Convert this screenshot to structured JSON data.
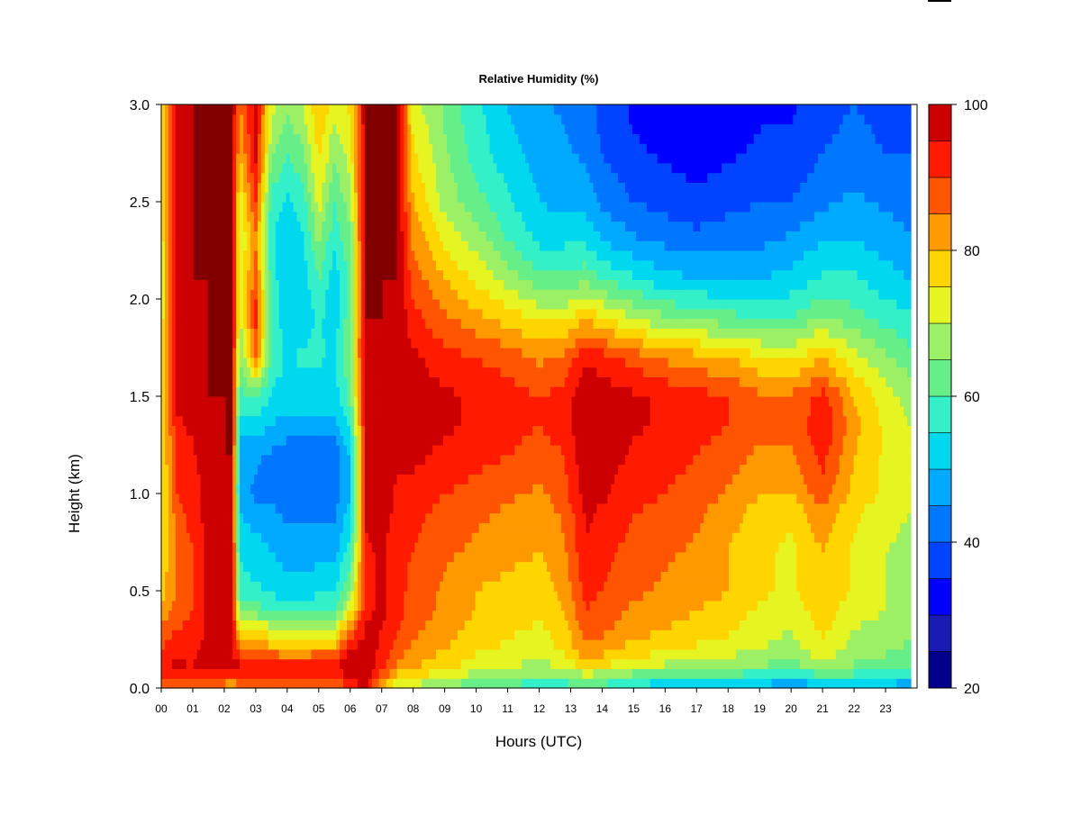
{
  "chart_data": {
    "type": "heatmap",
    "title": "Relative Humidity (%)",
    "xlabel": "Hours (UTC)",
    "ylabel": "Height (km)",
    "xlim": [
      0,
      24
    ],
    "ylim": [
      0.0,
      3.0
    ],
    "x_tick_labels": [
      "00",
      "01",
      "02",
      "03",
      "04",
      "05",
      "06",
      "07",
      "08",
      "09",
      "10",
      "11",
      "12",
      "13",
      "14",
      "15",
      "16",
      "17",
      "18",
      "19",
      "20",
      "21",
      "22",
      "23"
    ],
    "y_tick_labels": [
      "0.0",
      "0.5",
      "1.0",
      "1.5",
      "2.0",
      "2.5",
      "3.0"
    ],
    "colorbar": {
      "min": 20,
      "max": 100,
      "step": 5,
      "tick_labels": [
        "20",
        "40",
        "60",
        "80",
        "100"
      ],
      "colors": [
        "#00008b",
        "#1a1ab4",
        "#0000ff",
        "#0044ff",
        "#0077ff",
        "#00aaff",
        "#00d8f0",
        "#33f0c8",
        "#66ee88",
        "#9cf066",
        "#e6f522",
        "#ffd500",
        "#ff9900",
        "#ff5500",
        "#ff1a00",
        "#cc0000",
        "#800000"
      ]
    },
    "grid": false,
    "legend": "colorbar-right",
    "data": {
      "heights_km": [
        0.0,
        0.05,
        0.1,
        0.2,
        0.3,
        0.4,
        0.5,
        0.7,
        0.9,
        1.0,
        1.2,
        1.35,
        1.5,
        1.7,
        1.9,
        2.1,
        2.3,
        2.5,
        2.75,
        3.0
      ],
      "hours": [
        0.0,
        0.5,
        1.0,
        1.5,
        2.0,
        2.25,
        2.5,
        3.0,
        3.5,
        4.0,
        4.5,
        5.0,
        5.5,
        6.0,
        6.5,
        7.0,
        7.5,
        8.0,
        9.0,
        10.0,
        11.0,
        12.0,
        12.8,
        13.5,
        14.0,
        15.0,
        16.0,
        17.0,
        18.0,
        19.0,
        20.0,
        21.0,
        22.0,
        23.0,
        23.8
      ],
      "rh_percent": [
        [
          85,
          90,
          95,
          90,
          86,
          82,
          78,
          76,
          74,
          74,
          74,
          74,
          74,
          74,
          72,
          72,
          72,
          74,
          74,
          74
        ],
        [
          85,
          92,
          96,
          94,
          90,
          88,
          86,
          86,
          88,
          90,
          92,
          94,
          96,
          97,
          98,
          98,
          98,
          98,
          98,
          98
        ],
        [
          82,
          90,
          95,
          94,
          92,
          90,
          90,
          90,
          92,
          92,
          94,
          96,
          98,
          99,
          99,
          100,
          100,
          100,
          100,
          100
        ],
        [
          84,
          92,
          97,
          96,
          96,
          96,
          96,
          96,
          98,
          98,
          99,
          99,
          100,
          100,
          100,
          100,
          100,
          100,
          100,
          100
        ],
        [
          80,
          90,
          96,
          96,
          97,
          98,
          98,
          98,
          99,
          99,
          100,
          100,
          100,
          100,
          100,
          100,
          100,
          100,
          100,
          100
        ],
        [
          78,
          88,
          96,
          96,
          97,
          98,
          98,
          98,
          99,
          99,
          100,
          100,
          100,
          100,
          100,
          100,
          100,
          100,
          100,
          100
        ],
        [
          88,
          90,
          98,
          86,
          76,
          64,
          58,
          54,
          50,
          46,
          48,
          52,
          58,
          64,
          70,
          72,
          70,
          72,
          80,
          84
        ],
        [
          88,
          90,
          98,
          84,
          76,
          62,
          56,
          52,
          48,
          44,
          46,
          52,
          60,
          86,
          92,
          88,
          84,
          90,
          96,
          98
        ],
        [
          88,
          90,
          97,
          82,
          72,
          60,
          54,
          50,
          46,
          44,
          44,
          50,
          54,
          60,
          58,
          58,
          56,
          58,
          66,
          72
        ],
        [
          86,
          90,
          96,
          80,
          70,
          58,
          52,
          48,
          44,
          40,
          42,
          48,
          52,
          54,
          52,
          50,
          50,
          54,
          60,
          66
        ],
        [
          84,
          88,
          96,
          80,
          68,
          58,
          52,
          48,
          44,
          42,
          42,
          48,
          52,
          56,
          52,
          52,
          54,
          58,
          64,
          70
        ],
        [
          88,
          90,
          98,
          82,
          72,
          60,
          54,
          48,
          44,
          40,
          42,
          48,
          52,
          56,
          56,
          60,
          66,
          72,
          76,
          80
        ],
        [
          86,
          88,
          97,
          82,
          72,
          60,
          54,
          48,
          44,
          42,
          42,
          48,
          52,
          54,
          52,
          52,
          56,
          60,
          66,
          72
        ],
        [
          92,
          95,
          100,
          96,
          86,
          74,
          66,
          58,
          52,
          50,
          50,
          56,
          62,
          66,
          64,
          62,
          64,
          68,
          72,
          76
        ],
        [
          95,
          98,
          100,
          98,
          96,
          94,
          94,
          94,
          96,
          96,
          98,
          98,
          99,
          99,
          100,
          100,
          100,
          100,
          100,
          100
        ],
        [
          78,
          86,
          92,
          94,
          95,
          96,
          96,
          96,
          97,
          98,
          98,
          99,
          99,
          100,
          100,
          100,
          100,
          100,
          100,
          100
        ],
        [
          70,
          76,
          84,
          88,
          90,
          92,
          92,
          92,
          94,
          94,
          96,
          98,
          98,
          99,
          99,
          100,
          100,
          100,
          100,
          100
        ],
        [
          68,
          74,
          80,
          84,
          86,
          88,
          88,
          90,
          92,
          94,
          96,
          98,
          98,
          96,
          92,
          88,
          84,
          80,
          76,
          72
        ],
        [
          64,
          70,
          76,
          80,
          82,
          84,
          84,
          86,
          88,
          90,
          94,
          96,
          96,
          92,
          86,
          80,
          74,
          68,
          66,
          64
        ],
        [
          60,
          66,
          72,
          76,
          78,
          80,
          80,
          84,
          86,
          88,
          92,
          94,
          94,
          90,
          82,
          74,
          68,
          62,
          58,
          56
        ],
        [
          58,
          64,
          70,
          74,
          76,
          78,
          78,
          82,
          84,
          86,
          90,
          92,
          92,
          88,
          78,
          68,
          60,
          56,
          52,
          50
        ],
        [
          56,
          62,
          68,
          72,
          74,
          76,
          76,
          80,
          82,
          84,
          88,
          90,
          90,
          84,
          74,
          62,
          54,
          50,
          48,
          46
        ],
        [
          56,
          62,
          70,
          76,
          78,
          80,
          82,
          84,
          86,
          88,
          90,
          92,
          92,
          86,
          74,
          62,
          54,
          48,
          46,
          44
        ],
        [
          60,
          66,
          76,
          84,
          88,
          90,
          92,
          94,
          96,
          98,
          99,
          100,
          100,
          94,
          80,
          64,
          54,
          48,
          44,
          42
        ],
        [
          58,
          64,
          74,
          82,
          86,
          88,
          90,
          92,
          94,
          96,
          98,
          99,
          98,
          92,
          76,
          60,
          50,
          44,
          40,
          38
        ],
        [
          52,
          60,
          70,
          78,
          82,
          84,
          86,
          88,
          90,
          92,
          94,
          96,
          96,
          88,
          70,
          56,
          46,
          40,
          36,
          34
        ],
        [
          50,
          58,
          68,
          76,
          80,
          82,
          84,
          86,
          88,
          90,
          92,
          94,
          94,
          84,
          66,
          52,
          44,
          38,
          34,
          32
        ],
        [
          50,
          56,
          66,
          74,
          78,
          80,
          82,
          84,
          86,
          88,
          90,
          92,
          92,
          82,
          64,
          50,
          42,
          36,
          33,
          32
        ],
        [
          50,
          56,
          66,
          72,
          76,
          78,
          80,
          80,
          82,
          84,
          88,
          90,
          90,
          80,
          62,
          50,
          44,
          38,
          34,
          32
        ],
        [
          48,
          54,
          64,
          70,
          72,
          74,
          76,
          76,
          78,
          80,
          84,
          86,
          86,
          76,
          60,
          50,
          44,
          40,
          36,
          34
        ],
        [
          44,
          52,
          62,
          68,
          70,
          72,
          74,
          74,
          76,
          80,
          84,
          86,
          86,
          74,
          60,
          52,
          46,
          40,
          36,
          34
        ],
        [
          48,
          56,
          66,
          74,
          76,
          78,
          80,
          80,
          84,
          88,
          92,
          94,
          92,
          80,
          66,
          56,
          50,
          44,
          40,
          38
        ],
        [
          50,
          56,
          64,
          68,
          70,
          72,
          74,
          74,
          76,
          78,
          80,
          82,
          80,
          72,
          62,
          56,
          50,
          46,
          42,
          40
        ],
        [
          48,
          54,
          62,
          66,
          68,
          70,
          70,
          70,
          72,
          74,
          74,
          74,
          72,
          66,
          58,
          52,
          48,
          44,
          40,
          38
        ],
        [
          46,
          52,
          60,
          64,
          66,
          68,
          68,
          68,
          70,
          70,
          70,
          70,
          68,
          62,
          56,
          50,
          46,
          42,
          40,
          38
        ]
      ]
    }
  }
}
